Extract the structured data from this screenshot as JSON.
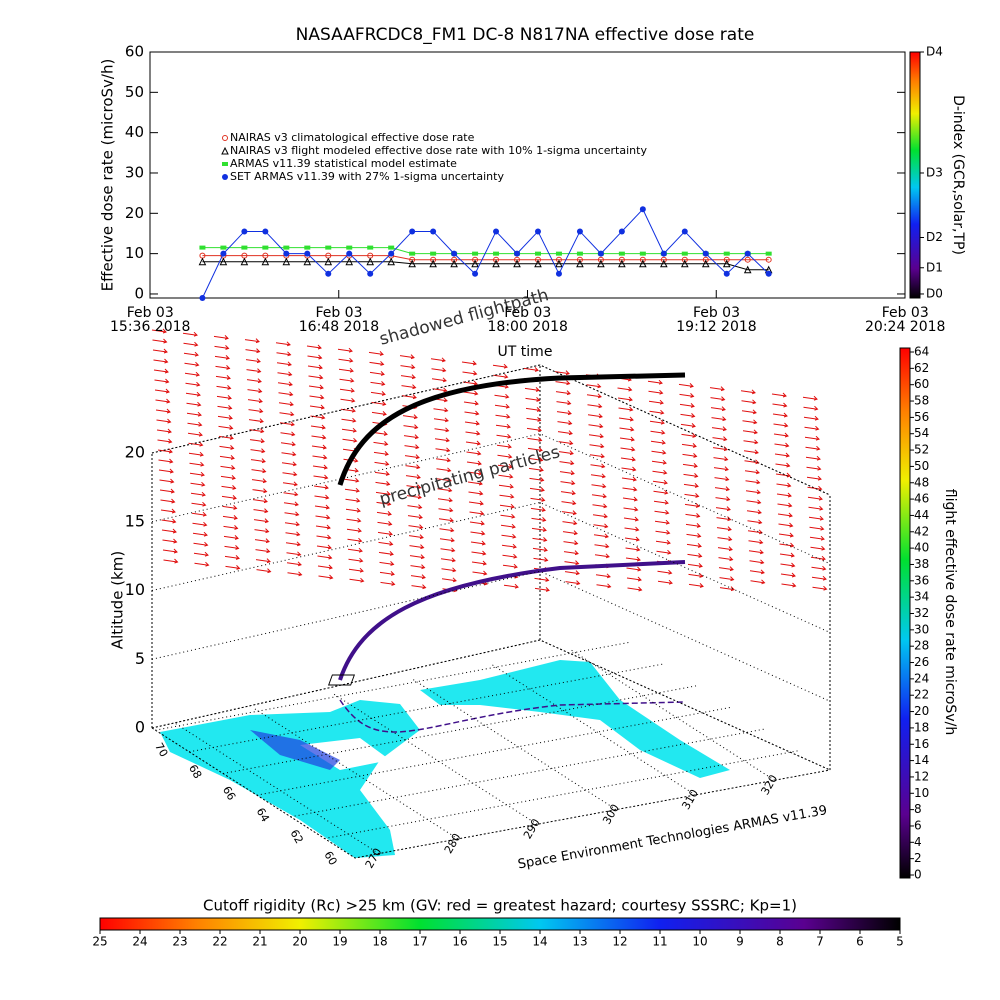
{
  "chart_data": [
    {
      "type": "line",
      "title": "NASAAFRCDC8_FM1 DC-8   N817NA effective dose rate",
      "ylabel": "Effective dose rate (microSv/h)",
      "xlabel": "UT time",
      "xlim": [
        "2018-02-03T15:36",
        "2018-02-03T20:24"
      ],
      "xticks": [
        {
          "value": "2018-02-03T15:36",
          "label": "Feb 03\n15:36 2018"
        },
        {
          "value": "2018-02-03T16:48",
          "label": "Feb 03\n16:48 2018"
        },
        {
          "value": "2018-02-03T18:00",
          "label": "Feb 03\n18:00 2018"
        },
        {
          "value": "2018-02-03T19:12",
          "label": "Feb 03\n19:12 2018"
        },
        {
          "value": "2018-02-03T20:24",
          "label": "Feb 03\n20:24 2018"
        }
      ],
      "ylim": [
        -1,
        60
      ],
      "yticks": [
        0,
        10,
        20,
        30,
        40,
        50,
        60
      ],
      "x": [
        "2018-02-03T15:56",
        "2018-02-03T16:04",
        "2018-02-03T16:12",
        "2018-02-03T16:20",
        "2018-02-03T16:28",
        "2018-02-03T16:36",
        "2018-02-03T16:44",
        "2018-02-03T16:52",
        "2018-02-03T17:00",
        "2018-02-03T17:08",
        "2018-02-03T17:16",
        "2018-02-03T17:24",
        "2018-02-03T17:32",
        "2018-02-03T17:40",
        "2018-02-03T17:48",
        "2018-02-03T17:56",
        "2018-02-03T18:04",
        "2018-02-03T18:12",
        "2018-02-03T18:20",
        "2018-02-03T18:28",
        "2018-02-03T18:36",
        "2018-02-03T18:44",
        "2018-02-03T18:52",
        "2018-02-03T19:00",
        "2018-02-03T19:08",
        "2018-02-03T19:16",
        "2018-02-03T19:24",
        "2018-02-03T19:32"
      ],
      "series": [
        {
          "name": "NAIRAS v3 climatological effective dose rate",
          "color": "#e03020",
          "marker": "circle",
          "values": [
            9.5,
            9.5,
            9.5,
            9.5,
            9.5,
            9.5,
            9.5,
            9.5,
            9.5,
            9.5,
            8.5,
            8.5,
            8.5,
            8.5,
            8.5,
            8.5,
            8.5,
            8.5,
            8.5,
            8.5,
            8.5,
            8.5,
            8.5,
            8.5,
            8.5,
            8.5,
            8.5,
            8.5
          ]
        },
        {
          "name": "NAIRAS v3 flight modeled effective dose rate with 10% 1-sigma uncertainty",
          "color": "#000000",
          "marker": "triangle",
          "values": [
            8,
            8,
            8,
            8,
            8,
            8,
            8,
            8,
            8,
            8,
            7.5,
            7.5,
            7.5,
            7.5,
            7.5,
            7.5,
            7.5,
            7.5,
            7.5,
            7.5,
            7.5,
            7.5,
            7.5,
            7.5,
            7.5,
            7.5,
            6,
            6
          ]
        },
        {
          "name": "ARMAS v11.39 statistical model estimate",
          "color": "#30e030",
          "marker": "square",
          "values": [
            11.5,
            11.5,
            11.5,
            11.5,
            11.5,
            11.5,
            11.5,
            11.5,
            11.5,
            11.5,
            10,
            10,
            10,
            10,
            10,
            10,
            10,
            10,
            10,
            10,
            10,
            10,
            10,
            10,
            10,
            10,
            10,
            10
          ]
        },
        {
          "name": "SET ARMAS v11.39 with 27% 1-sigma uncertainty",
          "color": "#1030e0",
          "marker": "dot",
          "values": [
            -1,
            10,
            15.5,
            15.5,
            10,
            10,
            5,
            10,
            5,
            10,
            15.5,
            15.5,
            10,
            5,
            15.5,
            10,
            15.5,
            5,
            15.5,
            10,
            15.5,
            21,
            10,
            15.5,
            10,
            5,
            10,
            5
          ]
        }
      ],
      "colorbar": {
        "label": "D-index (GCR,solar,TP)",
        "ticks": [
          {
            "value": 0,
            "label": "D0"
          },
          {
            "value": 6.5,
            "label": "D1"
          },
          {
            "value": 14,
            "label": "D2"
          },
          {
            "value": 30,
            "label": "D3"
          },
          {
            "value": 60,
            "label": "D4"
          }
        ]
      }
    },
    {
      "type": "surface3d",
      "zlabel": "Altitude (km)",
      "zticks": [
        0,
        5,
        10,
        15,
        20
      ],
      "zlim": [
        0,
        20
      ],
      "lon_ticks": [
        270,
        280,
        290,
        300,
        310,
        320
      ],
      "lat_ticks": [
        70,
        68,
        66,
        64,
        62,
        60
      ],
      "annotations": [
        "shadowed flightpath",
        "precipitating particles"
      ],
      "credit": "Space Environment Technologies ARMAS v11.39",
      "colorbar": {
        "label": "flight effective dose rate microSv/h",
        "lim": [
          0,
          64
        ],
        "ticks": [
          0,
          2,
          4,
          6,
          8,
          10,
          12,
          14,
          16,
          18,
          20,
          22,
          24,
          26,
          28,
          30,
          32,
          34,
          36,
          38,
          40,
          42,
          44,
          46,
          48,
          50,
          52,
          54,
          56,
          58,
          60,
          62,
          64
        ]
      },
      "rigidity_colorbar": {
        "label": "Cutoff rigidity (Rc) >25 km (GV: red = greatest hazard; courtesy SSSRC; Kp=1)",
        "lim": [
          25,
          5
        ],
        "ticks": [
          25,
          24,
          23,
          22,
          21,
          20,
          19,
          18,
          17,
          16,
          15,
          14,
          13,
          12,
          11,
          10,
          9,
          8,
          7,
          6,
          5
        ]
      }
    }
  ]
}
